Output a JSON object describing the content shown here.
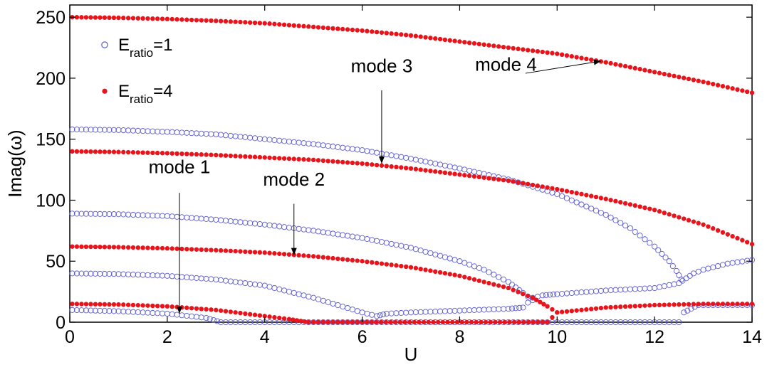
{
  "chart_data": {
    "type": "scatter",
    "title": "",
    "xlabel": "U",
    "ylabel": "Imag(ω)",
    "xlim": [
      0,
      14
    ],
    "ylim": [
      0,
      260
    ],
    "xticks": [
      0,
      2,
      4,
      6,
      8,
      10,
      12,
      14
    ],
    "yticks": [
      0,
      50,
      100,
      150,
      200,
      250
    ],
    "grid": false,
    "legend_position": "top-left",
    "legend": [
      {
        "main": "E",
        "sub": "ratio",
        "suffix": "=1",
        "marker": "open-circle",
        "color": "#5a5ad2"
      },
      {
        "main": "E",
        "sub": "ratio",
        "suffix": "=4",
        "marker": "filled-circle",
        "color": "#e8141b"
      }
    ],
    "series": [
      {
        "legend_index": 0,
        "points": [
          [
            0.05,
            10
          ],
          [
            1,
            9
          ],
          [
            2,
            7
          ],
          [
            2.8,
            3.5
          ],
          [
            3.1,
            0
          ],
          [
            6,
            0
          ],
          [
            9.5,
            0
          ],
          [
            12.5,
            0
          ],
          [
            12.6,
            8
          ],
          [
            12.9,
            14
          ],
          [
            13.5,
            14
          ],
          [
            14,
            14
          ]
        ]
      },
      {
        "legend_index": 0,
        "points": [
          [
            0.05,
            40
          ],
          [
            1,
            39.5
          ],
          [
            2,
            38
          ],
          [
            3,
            35
          ],
          [
            4,
            30
          ],
          [
            5,
            20
          ],
          [
            5.5,
            14
          ],
          [
            6,
            8
          ],
          [
            6.3,
            5
          ],
          [
            6.5,
            7
          ],
          [
            7,
            8
          ],
          [
            8,
            9.5
          ],
          [
            9,
            11
          ],
          [
            9.3,
            12
          ],
          [
            9.5,
            20
          ],
          [
            9.7,
            22
          ],
          [
            10,
            23
          ],
          [
            11,
            26
          ],
          [
            12,
            28
          ],
          [
            12.5,
            32
          ],
          [
            12.8,
            40
          ],
          [
            13,
            43
          ],
          [
            13.5,
            48
          ],
          [
            14,
            51
          ]
        ]
      },
      {
        "legend_index": 0,
        "points": [
          [
            0.05,
            89
          ],
          [
            1,
            88.5
          ],
          [
            2,
            87
          ],
          [
            3,
            84
          ],
          [
            4,
            80
          ],
          [
            5,
            75
          ],
          [
            6,
            69
          ],
          [
            7,
            61
          ],
          [
            8,
            50
          ],
          [
            8.5,
            43
          ],
          [
            9,
            33
          ],
          [
            9.3,
            24
          ],
          [
            9.5,
            18
          ]
        ]
      },
      {
        "legend_index": 0,
        "points": [
          [
            0.05,
            158
          ],
          [
            1,
            157.5
          ],
          [
            2,
            156
          ],
          [
            3,
            154
          ],
          [
            4,
            150
          ],
          [
            5,
            146
          ],
          [
            6,
            141
          ],
          [
            7,
            134
          ],
          [
            8,
            126
          ],
          [
            9,
            117
          ],
          [
            10,
            105
          ],
          [
            11,
            88
          ],
          [
            11.5,
            77
          ],
          [
            12,
            62
          ],
          [
            12.3,
            50
          ],
          [
            12.45,
            42
          ],
          [
            12.55,
            35
          ]
        ]
      },
      {
        "legend_index": 1,
        "points": [
          [
            0.05,
            15
          ],
          [
            1,
            14.5
          ],
          [
            2,
            13
          ],
          [
            3,
            10
          ],
          [
            4,
            5
          ],
          [
            4.5,
            2.5
          ],
          [
            4.9,
            0
          ],
          [
            6,
            0
          ],
          [
            9.8,
            0
          ],
          [
            10,
            8
          ],
          [
            10.5,
            10
          ],
          [
            11,
            12
          ],
          [
            12,
            14
          ],
          [
            13,
            15
          ],
          [
            14,
            15
          ]
        ]
      },
      {
        "legend_index": 1,
        "points": [
          [
            0.05,
            62
          ],
          [
            1,
            61.5
          ],
          [
            2,
            60.5
          ],
          [
            3,
            59
          ],
          [
            4,
            57
          ],
          [
            5,
            54
          ],
          [
            6,
            50
          ],
          [
            7,
            45
          ],
          [
            8,
            38
          ],
          [
            8.5,
            33
          ],
          [
            9,
            28
          ],
          [
            9.5,
            20
          ],
          [
            9.8,
            13
          ],
          [
            10,
            8
          ]
        ]
      },
      {
        "legend_index": 1,
        "points": [
          [
            0.05,
            140
          ],
          [
            1,
            139.5
          ],
          [
            2,
            138.5
          ],
          [
            3,
            137
          ],
          [
            4,
            135
          ],
          [
            5,
            133
          ],
          [
            6,
            130
          ],
          [
            7,
            126
          ],
          [
            8,
            121
          ],
          [
            9,
            116
          ],
          [
            10,
            109
          ],
          [
            11,
            101
          ],
          [
            12,
            92
          ],
          [
            13,
            80
          ],
          [
            14,
            64
          ]
        ]
      },
      {
        "legend_index": 1,
        "points": [
          [
            0.05,
            250
          ],
          [
            1,
            249.5
          ],
          [
            2,
            248.5
          ],
          [
            3,
            247
          ],
          [
            4,
            245
          ],
          [
            5,
            242
          ],
          [
            6,
            239
          ],
          [
            7,
            235
          ],
          [
            8,
            230
          ],
          [
            9,
            225
          ],
          [
            10,
            220
          ],
          [
            11,
            213
          ],
          [
            12,
            205
          ],
          [
            13,
            197
          ],
          [
            14,
            188
          ]
        ]
      }
    ],
    "annotations": [
      {
        "text": "mode 1",
        "text_at": [
          2.25,
          122
        ],
        "arrow_from": [
          2.25,
          106
        ],
        "arrow_to": [
          2.25,
          7
        ]
      },
      {
        "text": "mode 2",
        "text_at": [
          4.6,
          112
        ],
        "arrow_from": [
          4.6,
          97
        ],
        "arrow_to": [
          4.6,
          55
        ]
      },
      {
        "text": "mode 3",
        "text_at": [
          6.4,
          205
        ],
        "arrow_from": [
          6.4,
          190
        ],
        "arrow_to": [
          6.4,
          130
        ]
      },
      {
        "text": "mode 4",
        "text_at": [
          8.95,
          206
        ],
        "arrow_from": [
          9.35,
          204
        ],
        "arrow_to": [
          10.9,
          214
        ]
      }
    ]
  }
}
